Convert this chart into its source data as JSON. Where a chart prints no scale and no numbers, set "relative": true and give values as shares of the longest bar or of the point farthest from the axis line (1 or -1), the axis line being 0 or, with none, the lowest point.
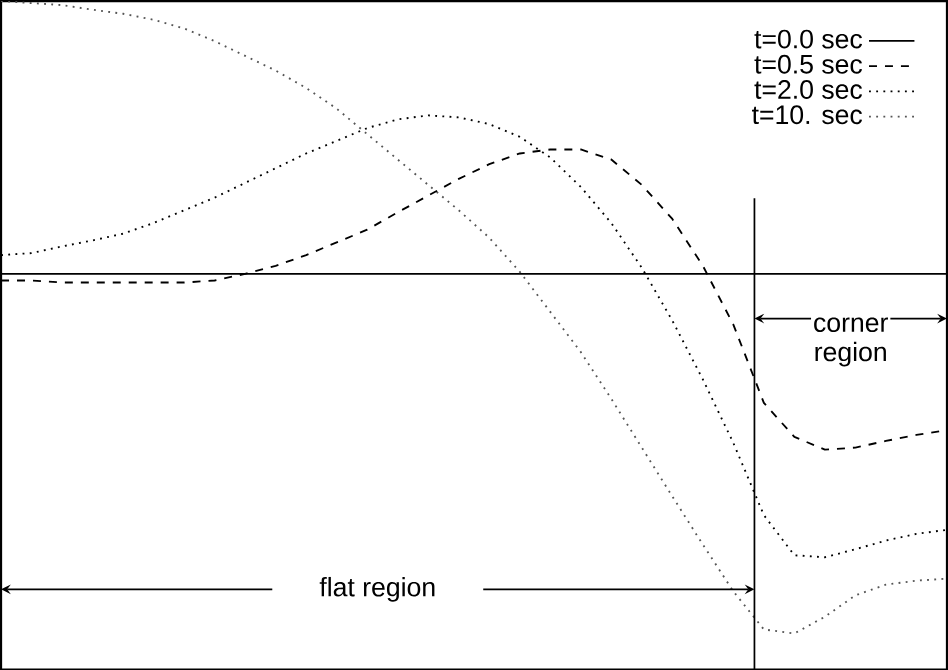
{
  "chart_data": {
    "type": "line",
    "relative": true,
    "legend": "top right",
    "categories": [
      null,
      null,
      null,
      null,
      null,
      null,
      null,
      null,
      null,
      null,
      null,
      null,
      null,
      null,
      null,
      null,
      null,
      null,
      null,
      null,
      null,
      null,
      null,
      null,
      null,
      null,
      null,
      null,
      null,
      null,
      null,
      null
    ],
    "series": [
      {
        "name": "t=0.0 sec",
        "color": "#000000",
        "line_style": "solid",
        "values": [
          0.592,
          0.592,
          0.592,
          0.592,
          0.592,
          0.592,
          0.592,
          0.592,
          0.592,
          0.592,
          0.592,
          0.592,
          0.592,
          0.592,
          0.592,
          0.592,
          0.592,
          0.592,
          0.592,
          0.592,
          0.592,
          0.592,
          0.592,
          0.592,
          0.592,
          0.592,
          0.592,
          0.592,
          0.592,
          0.592,
          0.592,
          0.592
        ]
      },
      {
        "name": "t=0.5 sec",
        "color": "#000000",
        "line_style": "dashed",
        "values": [
          0.582,
          0.582,
          0.579,
          0.579,
          0.579,
          0.579,
          0.579,
          0.582,
          0.592,
          0.604,
          0.62,
          0.639,
          0.658,
          0.684,
          0.709,
          0.734,
          0.756,
          0.772,
          0.778,
          0.778,
          0.763,
          0.725,
          0.674,
          0.604,
          0.516,
          0.399,
          0.348,
          0.329,
          0.332,
          0.342,
          0.351,
          0.358
        ]
      },
      {
        "name": "t=2.0 sec",
        "color": "#000000",
        "line_style": "dotted",
        "values": [
          0.62,
          0.623,
          0.633,
          0.642,
          0.652,
          0.668,
          0.687,
          0.706,
          0.728,
          0.75,
          0.772,
          0.791,
          0.81,
          0.823,
          0.829,
          0.826,
          0.816,
          0.797,
          0.766,
          0.722,
          0.668,
          0.601,
          0.522,
          0.434,
          0.339,
          0.231,
          0.171,
          0.168,
          0.18,
          0.193,
          0.203,
          0.209
        ]
      },
      {
        "name": "t=10. sec",
        "color": "#555555",
        "line_style": "dotted",
        "values": [
          1.0,
          0.997,
          0.994,
          0.987,
          0.981,
          0.972,
          0.959,
          0.94,
          0.918,
          0.896,
          0.87,
          0.839,
          0.801,
          0.763,
          0.725,
          0.687,
          0.646,
          0.595,
          0.535,
          0.475,
          0.405,
          0.332,
          0.259,
          0.187,
          0.117,
          0.06,
          0.054,
          0.079,
          0.111,
          0.127,
          0.133,
          0.136
        ]
      }
    ],
    "annotations": [
      "flat region",
      "corner region"
    ]
  }
}
